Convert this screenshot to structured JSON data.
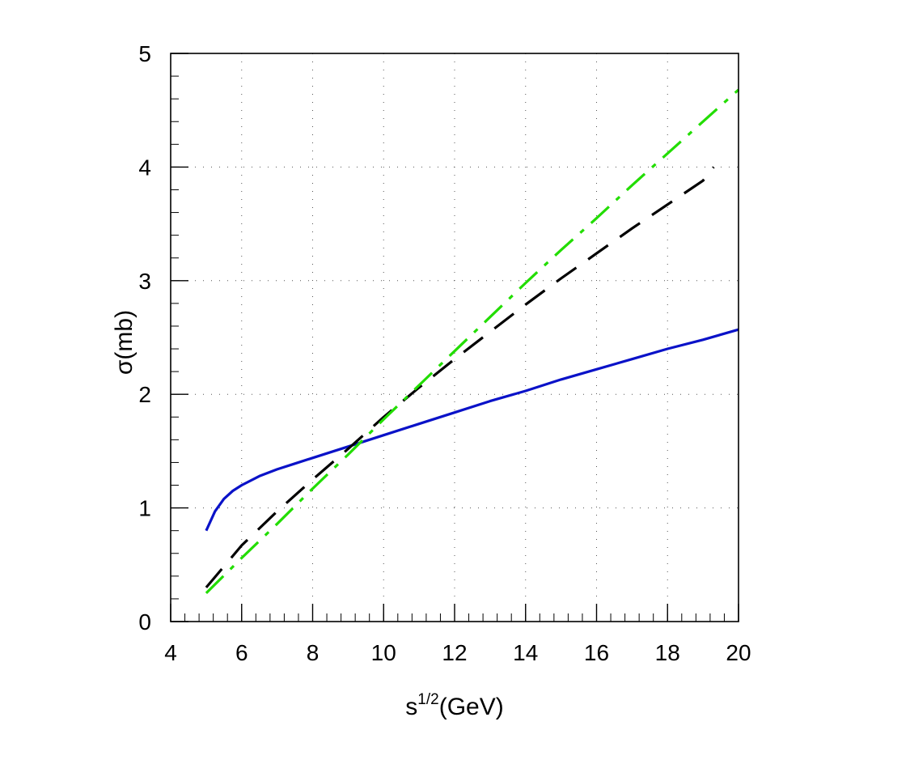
{
  "chart_data": {
    "type": "line",
    "title": "",
    "xlabel": "s",
    "xlabel_sup": "1/2",
    "xlabel_unit": "(GeV)",
    "ylabel": "σ(mb)",
    "xlim": [
      4,
      20
    ],
    "ylim": [
      0,
      5
    ],
    "xticks": [
      "4",
      "6",
      "8",
      "10",
      "12",
      "14",
      "16",
      "18",
      "20"
    ],
    "yticks": [
      "0",
      "1",
      "2",
      "3",
      "4",
      "5"
    ],
    "grid": true,
    "series": [
      {
        "color": "#0a12c8",
        "style": "solid",
        "x": [
          5.0,
          5.25,
          5.5,
          5.75,
          6.0,
          6.5,
          7.0,
          7.5,
          8.0,
          8.5,
          9.0,
          10.0,
          11.0,
          12.0,
          13.0,
          14.0,
          15.0,
          16.0,
          17.0,
          18.0,
          19.0,
          20.0
        ],
        "y": [
          0.8,
          0.97,
          1.08,
          1.15,
          1.2,
          1.28,
          1.34,
          1.39,
          1.44,
          1.49,
          1.54,
          1.64,
          1.74,
          1.84,
          1.94,
          2.03,
          2.13,
          2.22,
          2.31,
          2.4,
          2.48,
          2.57
        ]
      },
      {
        "color": "#000000",
        "style": "dashed",
        "x": [
          5.0,
          6.0,
          7.0,
          8.0,
          9.0,
          10.0,
          11.0,
          12.0,
          13.0,
          14.0,
          15.0,
          16.0,
          17.0,
          18.0,
          19.0,
          19.3
        ],
        "y": [
          0.3,
          0.67,
          0.97,
          1.25,
          1.52,
          1.8,
          2.06,
          2.31,
          2.55,
          2.79,
          3.02,
          3.24,
          3.46,
          3.67,
          3.88,
          4.0
        ]
      },
      {
        "color": "#22dd00",
        "style": "dashdot",
        "x": [
          5.0,
          6.0,
          7.0,
          8.0,
          9.0,
          10.0,
          11.0,
          12.0,
          13.0,
          14.0,
          15.0,
          16.0,
          17.0,
          18.0,
          19.0,
          20.0
        ],
        "y": [
          0.25,
          0.56,
          0.86,
          1.17,
          1.47,
          1.78,
          2.08,
          2.38,
          2.68,
          2.98,
          3.27,
          3.55,
          3.84,
          4.12,
          4.4,
          4.68
        ]
      }
    ]
  }
}
